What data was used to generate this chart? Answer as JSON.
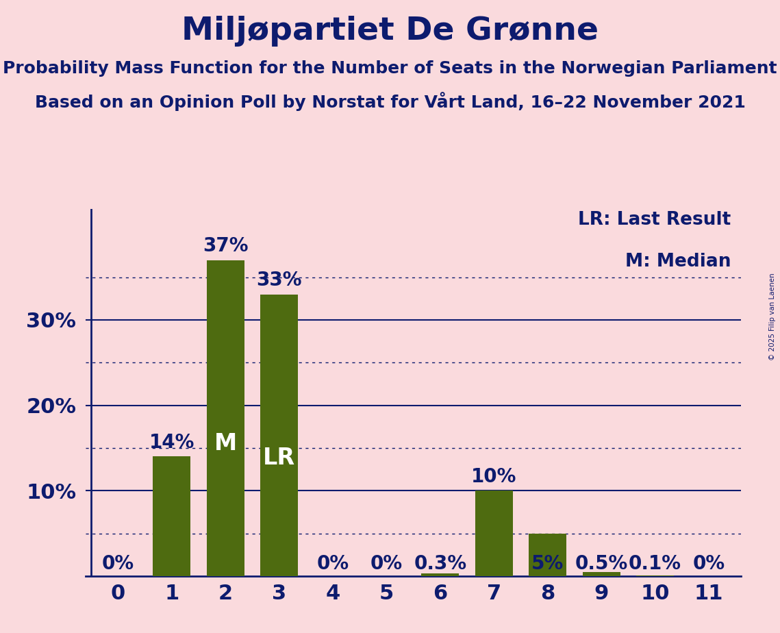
{
  "title": "Miljøpartiet De Grønne",
  "subtitle1": "Probability Mass Function for the Number of Seats in the Norwegian Parliament",
  "subtitle2": "Based on an Opinion Poll by Norstat for Vårt Land, 16–22 November 2021",
  "copyright": "© 2025 Filip van Laenen",
  "categories": [
    0,
    1,
    2,
    3,
    4,
    5,
    6,
    7,
    8,
    9,
    10,
    11
  ],
  "values": [
    0.0,
    0.14,
    0.37,
    0.33,
    0.0,
    0.0,
    0.003,
    0.1,
    0.05,
    0.005,
    0.001,
    0.0
  ],
  "labels": [
    "0%",
    "14%",
    "37%",
    "33%",
    "0%",
    "0%",
    "0.3%",
    "10%",
    "5%",
    "0.5%",
    "0.1%",
    "0%"
  ],
  "bar_color": "#4e6b10",
  "background_color": "#fadadd",
  "text_color": "#0d1b6e",
  "median_bar": 2,
  "lr_bar": 3,
  "ylim": [
    0,
    0.43
  ],
  "yticks": [
    0.1,
    0.2,
    0.3
  ],
  "ytick_labels": [
    "10%",
    "20%",
    "30%"
  ],
  "solid_gridlines": [
    0.1,
    0.2,
    0.3
  ],
  "dotted_gridlines": [
    0.05,
    0.15,
    0.25,
    0.35
  ],
  "legend_lr": "LR: Last Result",
  "legend_m": "M: Median",
  "title_fontsize": 34,
  "subtitle_fontsize": 18,
  "axis_tick_fontsize": 22,
  "bar_label_fontsize": 20,
  "inside_label_fontsize": 24
}
